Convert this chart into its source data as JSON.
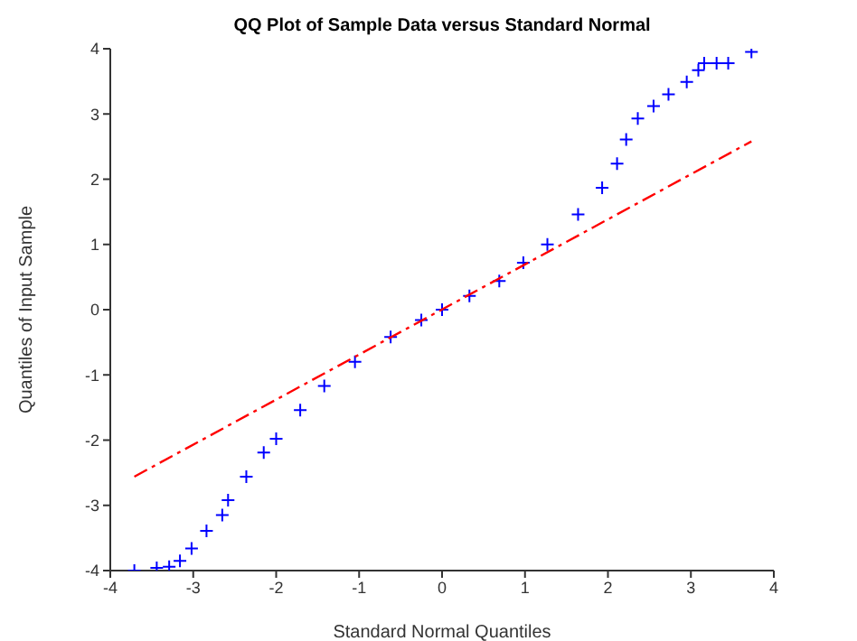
{
  "chart_data": {
    "type": "scatter",
    "title": "QQ Plot of Sample Data versus Standard Normal",
    "xlabel": "Standard Normal Quantiles",
    "ylabel": "Quantiles of Input Sample",
    "xlim": [
      -4,
      4
    ],
    "xticks": [
      -4,
      -3,
      -2,
      -1,
      0,
      1,
      2,
      3,
      4
    ],
    "ylim": [
      -4,
      4
    ],
    "yticks": [
      -4,
      -3,
      -2,
      -1,
      0,
      1,
      2,
      3,
      4
    ],
    "grid": false,
    "legend": false,
    "marker": "cross",
    "x": [
      -3.71,
      -3.44,
      -3.29,
      -3.16,
      -3.02,
      -2.84,
      -2.65,
      -2.58,
      -2.36,
      -2.15,
      -2.0,
      -1.71,
      -1.42,
      -1.05,
      -0.62,
      -0.25,
      0.0,
      0.33,
      0.69,
      0.98,
      1.27,
      1.64,
      1.93,
      2.11,
      2.22,
      2.36,
      2.55,
      2.73,
      2.95,
      3.09,
      3.16,
      3.31,
      3.45,
      3.73
    ],
    "series": [
      {
        "color": "#0000ff",
        "values": [
          -4.0,
          -3.96,
          -3.94,
          -3.85,
          -3.66,
          -3.39,
          -3.15,
          -2.92,
          -2.56,
          -2.19,
          -1.98,
          -1.54,
          -1.17,
          -0.8,
          -0.42,
          -0.16,
          0.0,
          0.21,
          0.44,
          0.72,
          1.0,
          1.46,
          1.87,
          2.24,
          2.61,
          2.93,
          3.12,
          3.3,
          3.49,
          3.67,
          3.78,
          3.78,
          3.78,
          3.95
        ]
      },
      {
        "type": "line",
        "color": "#ff0000",
        "line_style": "dashed",
        "marker": "none",
        "x": [
          -3.71,
          3.73
        ],
        "values": [
          -2.56,
          2.58
        ]
      }
    ]
  }
}
